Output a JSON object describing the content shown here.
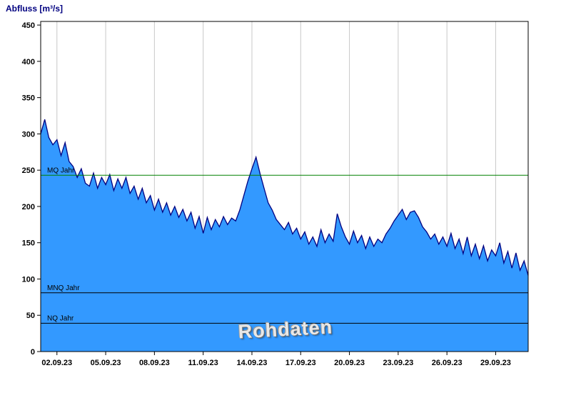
{
  "title": "Abfluss [m³/s]",
  "watermark": "Rohdaten",
  "chart_data": {
    "type": "area",
    "title": "Abfluss [m³/s]",
    "ylabel": "Abfluss [m³/s]",
    "series_name": "Rohdaten",
    "ylim": [
      0,
      455
    ],
    "yticks": [
      0,
      50,
      100,
      150,
      200,
      250,
      300,
      350,
      400,
      450
    ],
    "grid": "vertical-only",
    "x_start": "01.09.23",
    "x_end": "01.10.23",
    "x_total_days": 30,
    "x_tick_positions_days": [
      1,
      4,
      7,
      10,
      13,
      16,
      19,
      22,
      25,
      28
    ],
    "x_tick_labels": [
      "02.09.23",
      "05.09.23",
      "08.09.23",
      "11.09.23",
      "14.09.23",
      "17.09.23",
      "20.09.23",
      "23.09.23",
      "26.09.23",
      "29.09.23"
    ],
    "points_per_day": 4,
    "values": [
      300,
      320,
      295,
      285,
      292,
      270,
      288,
      262,
      255,
      240,
      252,
      232,
      228,
      246,
      225,
      240,
      230,
      244,
      222,
      238,
      225,
      240,
      218,
      228,
      210,
      225,
      205,
      215,
      195,
      210,
      192,
      205,
      188,
      200,
      185,
      196,
      180,
      192,
      170,
      186,
      163,
      185,
      168,
      182,
      172,
      186,
      175,
      184,
      180,
      195,
      215,
      235,
      252,
      268,
      245,
      225,
      205,
      195,
      182,
      175,
      168,
      178,
      162,
      170,
      155,
      165,
      148,
      158,
      145,
      168,
      150,
      162,
      152,
      190,
      172,
      158,
      148,
      166,
      150,
      160,
      142,
      158,
      145,
      155,
      150,
      162,
      170,
      180,
      188,
      196,
      182,
      192,
      194,
      185,
      172,
      165,
      155,
      162,
      148,
      158,
      145,
      163,
      142,
      155,
      135,
      158,
      132,
      148,
      128,
      146,
      125,
      140,
      132,
      150,
      122,
      138,
      115,
      136,
      112,
      125,
      105
    ],
    "reference_lines": [
      {
        "label": "MQ Jahr",
        "value": 243,
        "color": "#008000"
      },
      {
        "label": "MNQ Jahr",
        "value": 81,
        "color": "#000000"
      },
      {
        "label": "NQ Jahr",
        "value": 39,
        "color": "#000000"
      }
    ],
    "colors": {
      "fill": "#3399ff",
      "stroke": "#000080",
      "grid": "#c8c8c8",
      "axis": "#000000",
      "title": "#000080"
    },
    "legend_position": "none"
  }
}
